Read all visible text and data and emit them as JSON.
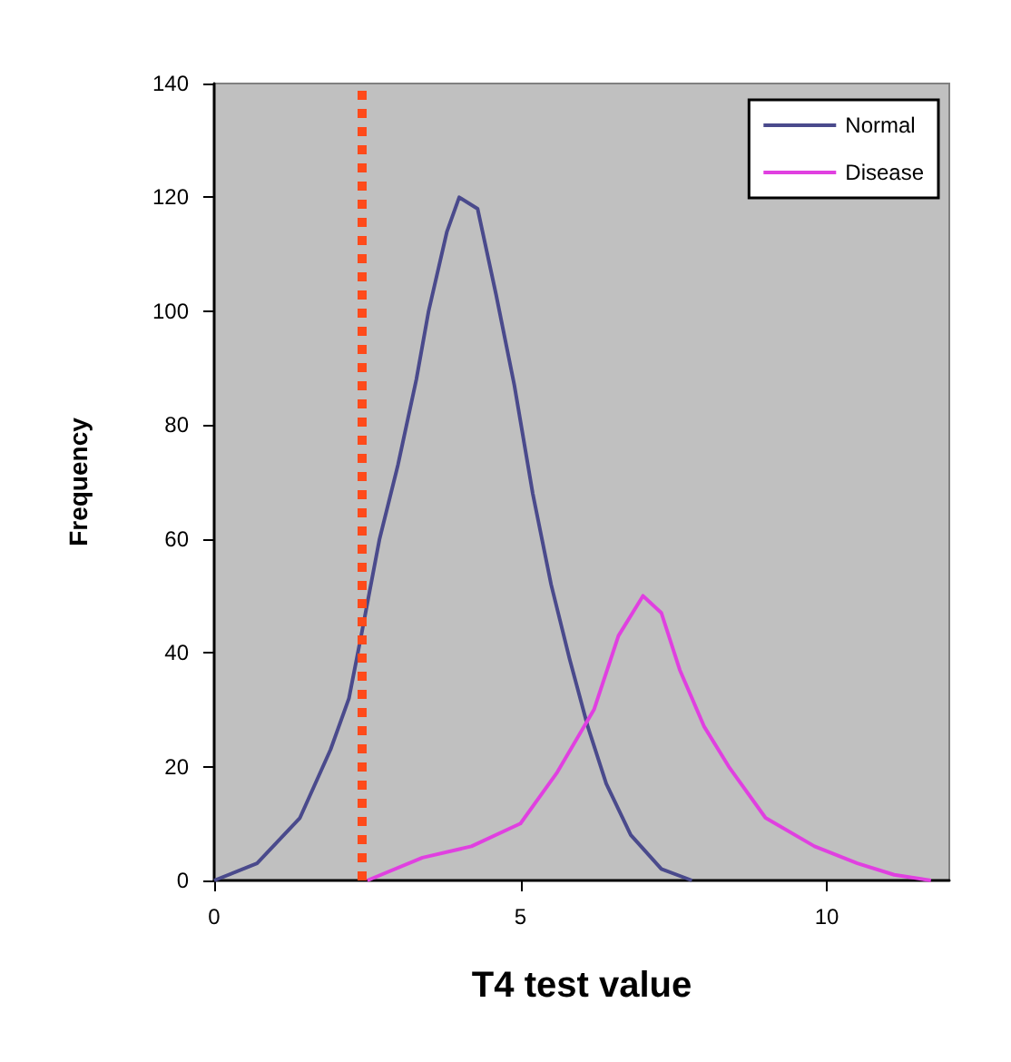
{
  "chart_data": {
    "type": "line",
    "xlabel": "T4 test value",
    "ylabel": "Frequency",
    "xlim": [
      0,
      12
    ],
    "xticks": [
      0,
      5,
      10
    ],
    "ylim": [
      0,
      140
    ],
    "yticks": [
      0,
      20,
      40,
      60,
      80,
      100,
      120,
      140
    ],
    "series": [
      {
        "name": "Normal",
        "color": "#4a4a8c",
        "x": [
          0,
          0.7,
          1.4,
          1.9,
          2.2,
          2.4,
          2.7,
          3.0,
          3.3,
          3.5,
          3.8,
          4.0,
          4.3,
          4.6,
          4.9,
          5.2,
          5.5,
          5.8,
          6.1,
          6.4,
          6.8,
          7.3,
          7.8
        ],
        "values": [
          0,
          3,
          11,
          23,
          32,
          43,
          60,
          73,
          88,
          100,
          114,
          120,
          118,
          103,
          87,
          68,
          52,
          39,
          27,
          17,
          8,
          2,
          0
        ]
      },
      {
        "name": "Disease",
        "color": "#e040e0",
        "x": [
          2.5,
          3.4,
          4.2,
          5.0,
          5.6,
          6.2,
          6.6,
          7.0,
          7.3,
          7.6,
          8.0,
          8.4,
          9.0,
          9.8,
          10.5,
          11.1,
          11.7
        ],
        "values": [
          0,
          4,
          6,
          10,
          19,
          30,
          43,
          50,
          47,
          37,
          27,
          20,
          11,
          6,
          3,
          1,
          0
        ]
      }
    ],
    "ref_lines": [
      {
        "axis": "x",
        "value": 2.4,
        "color": "#ff4a1a",
        "line_style": "dotted"
      }
    ],
    "grid": false,
    "legend": "top right",
    "marker": "none",
    "line_style": "solid"
  }
}
